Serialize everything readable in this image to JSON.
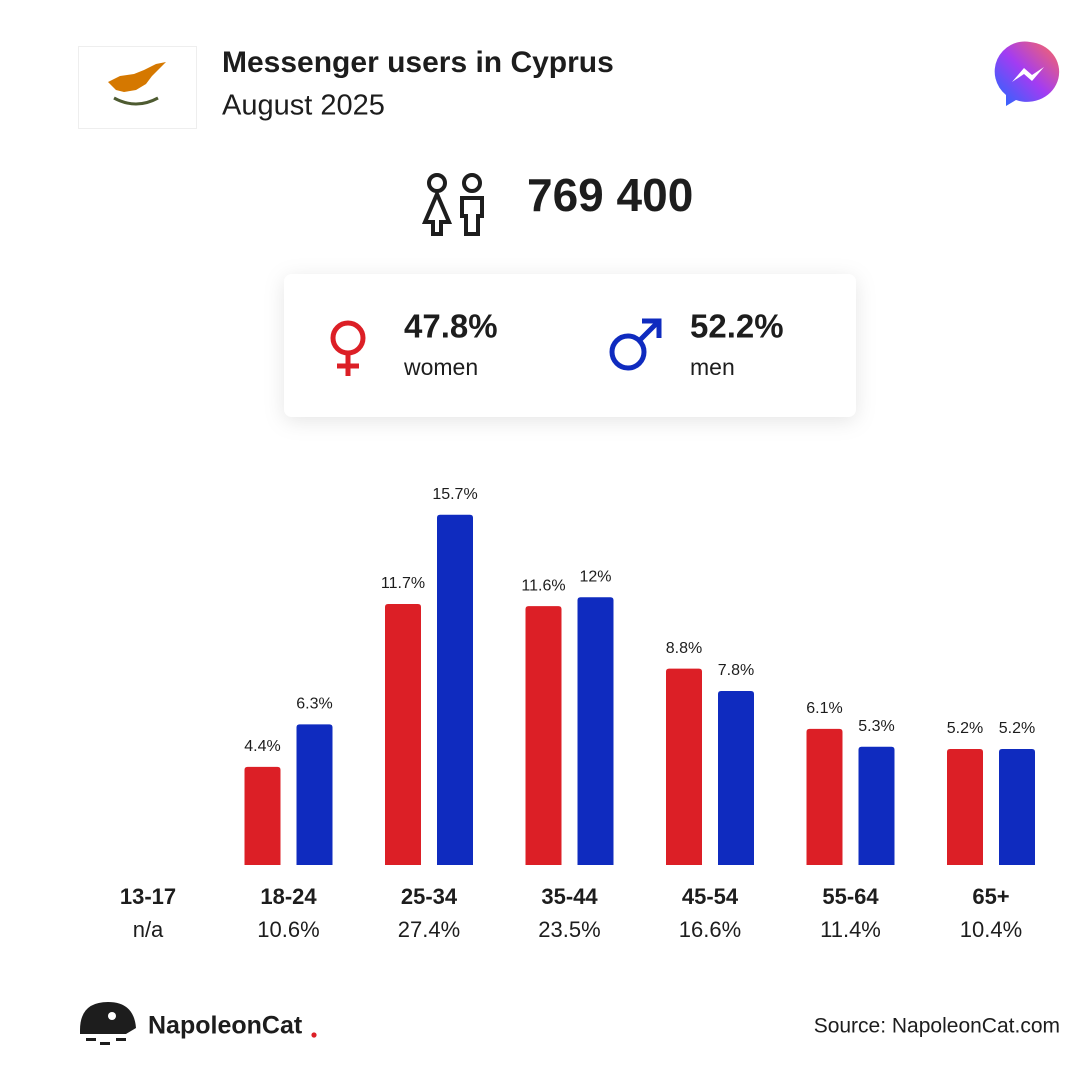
{
  "header": {
    "title": "Messenger users in Cyprus",
    "subtitle": "August 2025"
  },
  "total": "769 400",
  "gender": [
    {
      "share": "47.8%",
      "series": 0
    },
    {
      "share": "52.2%",
      "series": 1
    }
  ],
  "chart_data": {
    "type": "bar",
    "categories": [
      "13-17",
      "18-24",
      "25-34",
      "35-44",
      "45-54",
      "55-64",
      "65+"
    ],
    "category_totals": [
      "n/a",
      "10.6%",
      "27.4%",
      "23.5%",
      "16.6%",
      "11.4%",
      "10.4%"
    ],
    "series": [
      {
        "name": "women",
        "color": "#dc1f26",
        "values": [
          null,
          4.4,
          11.7,
          11.6,
          8.8,
          6.1,
          5.2
        ],
        "value_labels": [
          null,
          "4.4%",
          "11.7%",
          "11.6%",
          "8.8%",
          "6.1%",
          "5.2%"
        ]
      },
      {
        "name": "men",
        "color": "#0f2bbf",
        "values": [
          null,
          6.3,
          15.7,
          12,
          7.8,
          5.3,
          5.2
        ],
        "value_labels": [
          null,
          "6.3%",
          "15.7%",
          "12%",
          "7.8%",
          "5.3%",
          "5.2%"
        ]
      }
    ],
    "ylim": [
      0,
      16
    ]
  },
  "footer": {
    "brand": "NapoleonCat",
    "source": "Source: NapoleonCat.com"
  }
}
